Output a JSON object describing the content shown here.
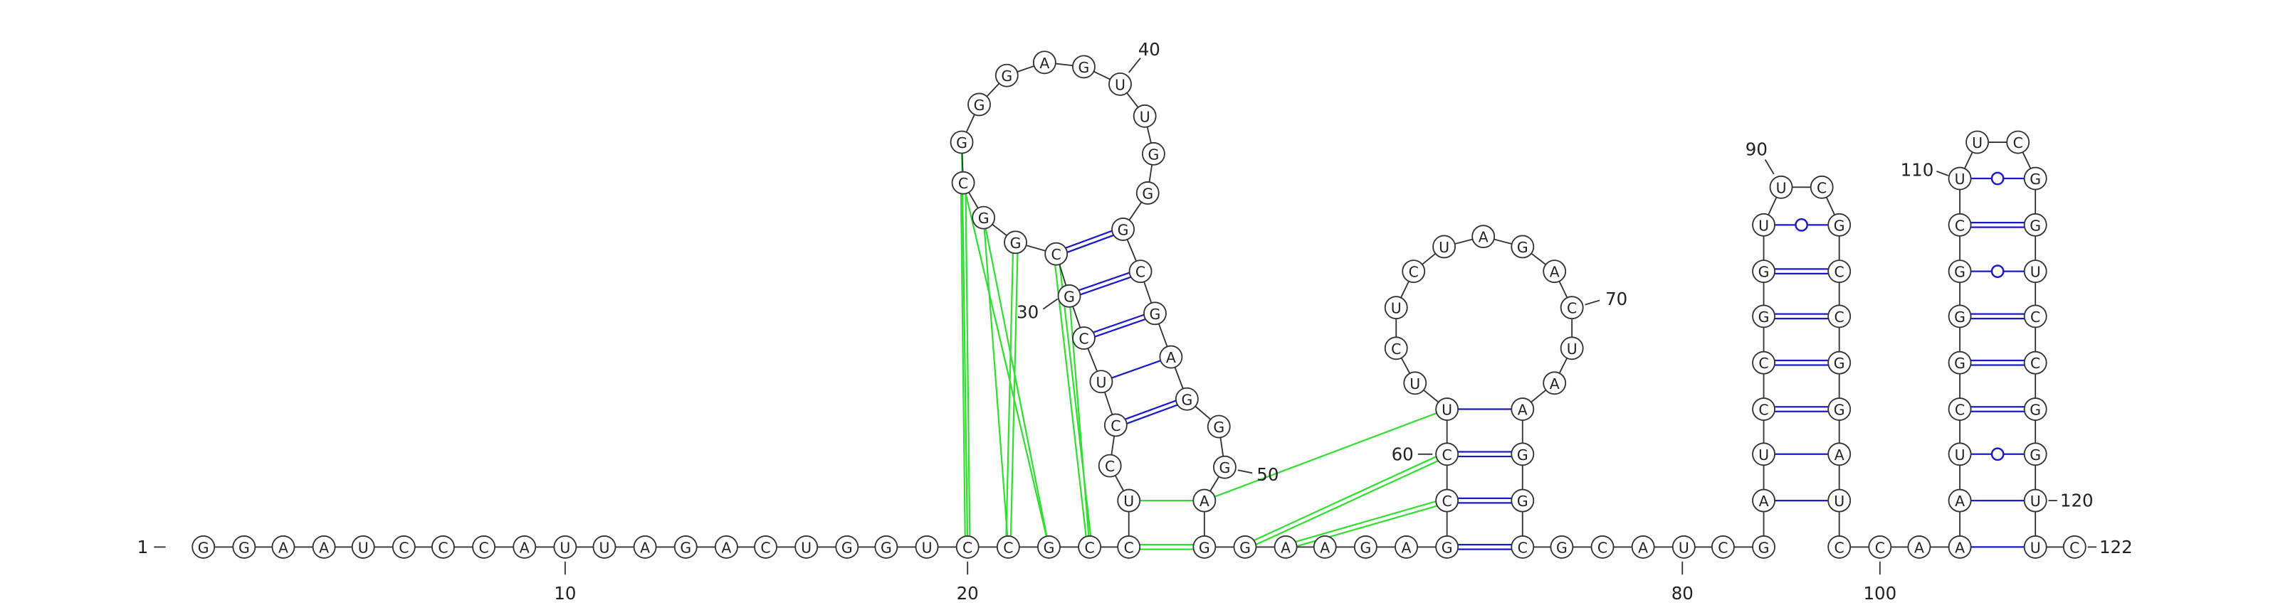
{
  "bases": [
    "G",
    "G",
    "A",
    "A",
    "U",
    "C",
    "C",
    "C",
    "A",
    "U",
    "U",
    "A",
    "G",
    "A",
    "C",
    "U",
    "G",
    "G",
    "U",
    "C",
    "C",
    "G",
    "C",
    "C",
    "U",
    "C",
    "C",
    "U",
    "C",
    "G",
    "C",
    "G",
    "G",
    "C",
    "G",
    "G",
    "G",
    "A",
    "G",
    "U",
    "U",
    "G",
    "G",
    "G",
    "C",
    "G",
    "A",
    "G",
    "G",
    "G",
    "A",
    "G",
    "G",
    "A",
    "A",
    "G",
    "A",
    "G",
    "C",
    "C",
    "U",
    "U",
    "C",
    "U",
    "C",
    "U",
    "A",
    "G",
    "A",
    "C",
    "U",
    "A",
    "A",
    "G",
    "G",
    "C",
    "G",
    "C",
    "A",
    "U",
    "C",
    "G",
    "A",
    "U",
    "C",
    "C",
    "G",
    "G",
    "U",
    "U",
    "C",
    "G",
    "C",
    "C",
    "G",
    "G",
    "A",
    "U",
    "C",
    "C",
    "A",
    "A",
    "A",
    "U",
    "C",
    "G",
    "G",
    "G",
    "C",
    "U",
    "U",
    "C",
    "G",
    "G",
    "U",
    "C",
    "C",
    "G",
    "G",
    "U",
    "U",
    "C"
  ],
  "position_labels": [
    "1",
    "10",
    "20",
    "30",
    "40",
    "50",
    "60",
    "70",
    "80",
    "90",
    "100",
    "110",
    "120",
    "122"
  ]
}
